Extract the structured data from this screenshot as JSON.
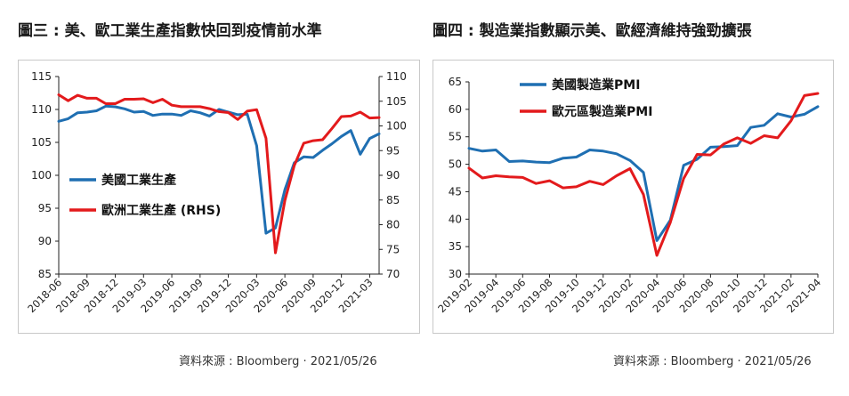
{
  "left": {
    "title": "圖三 : 美、歐工業生產指數快回到疫情前水準",
    "source": "資料來源 : Bloomberg · 2021/05/26"
  },
  "right": {
    "title": "圖四 : 製造業指數顯示美、歐經濟維持強勁擴張",
    "source": "資料來源 : Bloomberg · 2021/05/26"
  },
  "colors": {
    "blue": "#1f6fb2",
    "red": "#e31a1c"
  },
  "chart_data": [
    {
      "type": "line",
      "title": "",
      "x_tick_labels": [
        "2018-06",
        "2018-09",
        "2018-12",
        "2019-03",
        "2019-06",
        "2019-09",
        "2019-12",
        "2020-03",
        "2020-06",
        "2020-09",
        "2020-12",
        "2021-03"
      ],
      "yleft": {
        "ylim": [
          85,
          115
        ],
        "ticks": [
          85,
          90,
          95,
          100,
          105,
          110,
          115
        ]
      },
      "yright": {
        "ylim": [
          70,
          110
        ],
        "ticks": [
          70,
          75,
          80,
          85,
          90,
          95,
          100,
          105,
          110
        ]
      },
      "legend_position": "center-left",
      "series": [
        {
          "name": "美國工業生產",
          "axis": "left",
          "color": "#1f6fb2",
          "x": [
            "2018-06",
            "2018-07",
            "2018-08",
            "2018-09",
            "2018-10",
            "2018-11",
            "2018-12",
            "2019-01",
            "2019-02",
            "2019-03",
            "2019-04",
            "2019-05",
            "2019-06",
            "2019-07",
            "2019-08",
            "2019-09",
            "2019-10",
            "2019-11",
            "2019-12",
            "2020-01",
            "2020-02",
            "2020-03",
            "2020-04",
            "2020-05",
            "2020-06",
            "2020-07",
            "2020-08",
            "2020-09",
            "2020-10",
            "2020-11",
            "2020-12",
            "2021-01",
            "2021-02",
            "2021-03",
            "2021-04"
          ],
          "values": [
            108.2,
            108.6,
            109.5,
            109.6,
            109.8,
            110.5,
            110.4,
            110.1,
            109.6,
            109.7,
            109.1,
            109.3,
            109.3,
            109.1,
            109.8,
            109.5,
            109.0,
            110.0,
            109.6,
            109.2,
            109.3,
            104.5,
            91.2,
            92.0,
            97.8,
            101.9,
            102.8,
            102.7,
            103.8,
            104.8,
            105.9,
            106.8,
            103.2,
            105.6,
            106.3
          ]
        },
        {
          "name": "歐洲工業生產 (RHS)",
          "axis": "right",
          "color": "#e31a1c",
          "x": [
            "2018-06",
            "2018-07",
            "2018-08",
            "2018-09",
            "2018-10",
            "2018-11",
            "2018-12",
            "2019-01",
            "2019-02",
            "2019-03",
            "2019-04",
            "2019-05",
            "2019-06",
            "2019-07",
            "2019-08",
            "2019-09",
            "2019-10",
            "2019-11",
            "2019-12",
            "2020-01",
            "2020-02",
            "2020-03",
            "2020-04",
            "2020-05",
            "2020-06",
            "2020-07",
            "2020-08",
            "2020-09",
            "2020-10",
            "2020-11",
            "2020-12",
            "2021-01",
            "2021-02",
            "2021-03",
            "2021-04"
          ],
          "values": [
            106.3,
            105.1,
            106.2,
            105.6,
            105.6,
            104.5,
            104.5,
            105.4,
            105.4,
            105.5,
            104.7,
            105.4,
            104.2,
            103.9,
            103.9,
            103.9,
            103.5,
            102.9,
            102.7,
            101.3,
            103.0,
            103.3,
            97.5,
            74.3,
            84.9,
            92.0,
            96.5,
            97.0,
            97.2,
            99.5,
            101.9,
            102.0,
            102.8,
            101.6,
            101.7
          ]
        }
      ]
    },
    {
      "type": "line",
      "title": "",
      "x_tick_labels": [
        "2019-02",
        "2019-04",
        "2019-06",
        "2019-08",
        "2019-10",
        "2019-12",
        "2020-02",
        "2020-04",
        "2020-06",
        "2020-08",
        "2020-10",
        "2020-12",
        "2021-02",
        "2021-04"
      ],
      "ylim": [
        30,
        65
      ],
      "yticks": [
        30,
        35,
        40,
        45,
        50,
        55,
        60,
        65
      ],
      "legend_position": "top-left",
      "series": [
        {
          "name": "美國製造業PMI",
          "color": "#1f6fb2",
          "x": [
            "2019-02",
            "2019-03",
            "2019-04",
            "2019-05",
            "2019-06",
            "2019-07",
            "2019-08",
            "2019-09",
            "2019-10",
            "2019-11",
            "2019-12",
            "2020-01",
            "2020-02",
            "2020-03",
            "2020-04",
            "2020-05",
            "2020-06",
            "2020-07",
            "2020-08",
            "2020-09",
            "2020-10",
            "2020-11",
            "2020-12",
            "2021-01",
            "2021-02",
            "2021-03",
            "2021-04"
          ],
          "values": [
            52.9,
            52.4,
            52.6,
            50.5,
            50.6,
            50.4,
            50.3,
            51.1,
            51.3,
            52.6,
            52.4,
            51.9,
            50.7,
            48.5,
            36.1,
            39.8,
            49.8,
            50.9,
            53.1,
            53.2,
            53.4,
            56.7,
            57.1,
            59.2,
            58.6,
            59.1,
            60.5
          ]
        },
        {
          "name": "歐元區製造業PMI",
          "color": "#e31a1c",
          "x": [
            "2019-02",
            "2019-03",
            "2019-04",
            "2019-05",
            "2019-06",
            "2019-07",
            "2019-08",
            "2019-09",
            "2019-10",
            "2019-11",
            "2019-12",
            "2020-01",
            "2020-02",
            "2020-03",
            "2020-04",
            "2020-05",
            "2020-06",
            "2020-07",
            "2020-08",
            "2020-09",
            "2020-10",
            "2020-11",
            "2020-12",
            "2021-01",
            "2021-02",
            "2021-03",
            "2021-04"
          ],
          "values": [
            49.3,
            47.5,
            47.9,
            47.7,
            47.6,
            46.5,
            47.0,
            45.7,
            45.9,
            46.9,
            46.3,
            47.9,
            49.2,
            44.5,
            33.4,
            39.4,
            47.4,
            51.8,
            51.7,
            53.7,
            54.8,
            53.8,
            55.2,
            54.8,
            57.9,
            62.5,
            62.9
          ]
        }
      ]
    }
  ]
}
